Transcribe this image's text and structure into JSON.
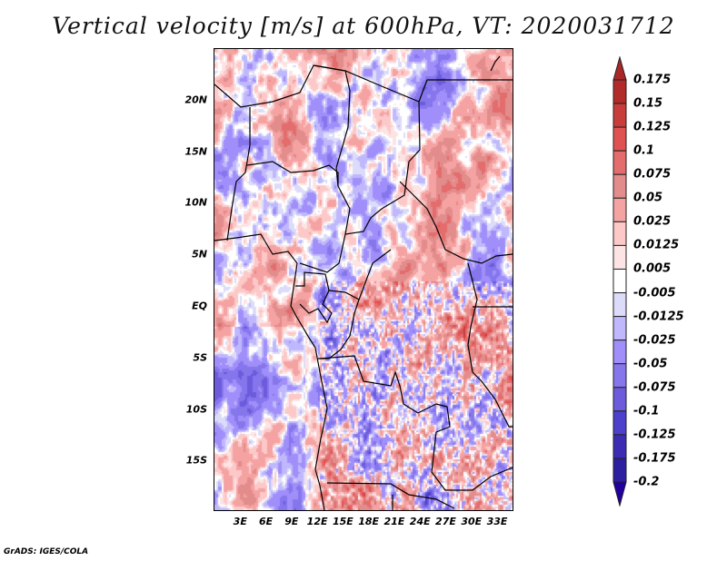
{
  "title": "Vertical velocity [m/s] at 600hPa, VT: 2020031712",
  "footer": "GrADS: IGES/COLA",
  "map": {
    "lat_range": [
      -19.8,
      24.9
    ],
    "lon_range": [
      0,
      34.8
    ],
    "lat_labels": [
      {
        "text": "20N",
        "value": 20
      },
      {
        "text": "15N",
        "value": 15
      },
      {
        "text": "10N",
        "value": 10
      },
      {
        "text": "5N",
        "value": 5
      },
      {
        "text": "EQ",
        "value": 0
      },
      {
        "text": "5S",
        "value": -5
      },
      {
        "text": "10S",
        "value": -10
      },
      {
        "text": "15S",
        "value": -15
      }
    ],
    "lon_labels": [
      {
        "text": "3E",
        "value": 3
      },
      {
        "text": "6E",
        "value": 6
      },
      {
        "text": "9E",
        "value": 9
      },
      {
        "text": "12E",
        "value": 12
      },
      {
        "text": "15E",
        "value": 15
      },
      {
        "text": "18E",
        "value": 18
      },
      {
        "text": "21E",
        "value": 21
      },
      {
        "text": "24E",
        "value": 24
      },
      {
        "text": "27E",
        "value": 27
      },
      {
        "text": "30E",
        "value": 30
      },
      {
        "text": "33E",
        "value": 33
      }
    ]
  },
  "colorbar": {
    "labels": [
      "0.175",
      "0.15",
      "0.125",
      "0.1",
      "0.075",
      "0.05",
      "0.025",
      "0.0125",
      "0.005",
      "-0.005",
      "-0.0125",
      "-0.025",
      "-0.05",
      "-0.075",
      "-0.1",
      "-0.125",
      "-0.175",
      "-0.2"
    ],
    "colors": [
      "#b22a2a",
      "#c83c3c",
      "#e05252",
      "#e46c6c",
      "#e28c8c",
      "#f5a2a2",
      "#fcc8c8",
      "#fde4e4",
      "#ffffff",
      "#dcdcfa",
      "#c0b8fc",
      "#a08ffa",
      "#8676ec",
      "#6c5cdc",
      "#4c40cc",
      "#3c2cb4",
      "#2c20a0"
    ],
    "over_color": "#a82828",
    "under_color": "#2200a0"
  }
}
